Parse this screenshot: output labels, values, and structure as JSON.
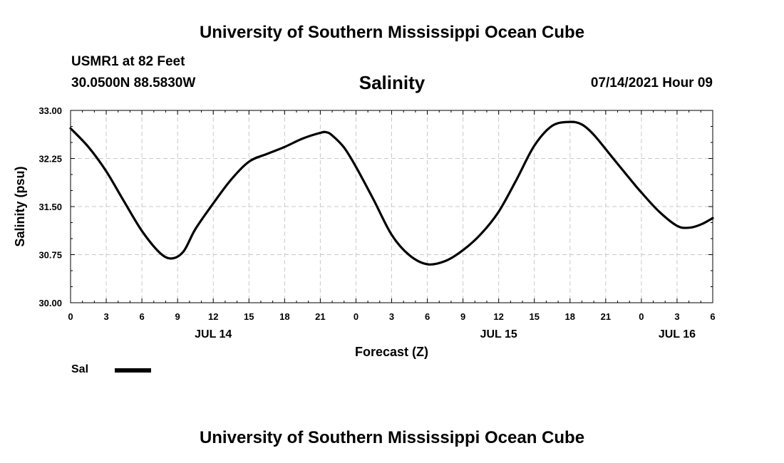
{
  "header": {
    "title_top": "University of Southern Mississippi Ocean Cube",
    "station": "USMR1 at 82 Feet",
    "coords": "30.0500N  88.5830W",
    "variable": "Salinity",
    "datetime": "07/14/2021 Hour 09"
  },
  "footer": {
    "title_bottom": "University of Southern Mississippi Ocean Cube"
  },
  "legend": {
    "label": "Sal",
    "color": "#000000"
  },
  "chart_data": {
    "type": "line",
    "title": "Salinity",
    "xlabel": "Forecast (Z)",
    "ylabel": "Salinity (psu)",
    "xlim": [
      0,
      54
    ],
    "ylim": [
      30.0,
      33.0
    ],
    "grid": true,
    "x_ticks": [
      0,
      3,
      6,
      9,
      12,
      15,
      18,
      21,
      24,
      27,
      30,
      33,
      36,
      39,
      42,
      45,
      48,
      51,
      54
    ],
    "x_tick_labels": [
      "0",
      "3",
      "6",
      "9",
      "12",
      "15",
      "18",
      "21",
      "0",
      "3",
      "6",
      "9",
      "12",
      "15",
      "18",
      "21",
      "0",
      "3",
      "6"
    ],
    "y_ticks": [
      30.0,
      30.75,
      31.5,
      32.25,
      33.0
    ],
    "y_tick_labels": [
      "30.00",
      "30.75",
      "31.50",
      "32.25",
      "33.00"
    ],
    "date_labels": [
      {
        "x": 12,
        "label": "JUL 14"
      },
      {
        "x": 36,
        "label": "JUL 15"
      },
      {
        "x": 51,
        "label": "JUL 16"
      }
    ],
    "series": [
      {
        "name": "Sal",
        "color": "#000000",
        "x": [
          0,
          1.5,
          3,
          4.5,
          6,
          7.5,
          8.5,
          9.5,
          10.5,
          12,
          13.5,
          15,
          16.5,
          18,
          19.5,
          21,
          21.5,
          22,
          23,
          24,
          25.5,
          27,
          28.5,
          30,
          31.5,
          33,
          34.5,
          36,
          37.5,
          39,
          40.5,
          42,
          43,
          44,
          45.5,
          47,
          48,
          49.5,
          51,
          52,
          53,
          54
        ],
        "values": [
          32.72,
          32.43,
          32.05,
          31.58,
          31.12,
          30.78,
          30.69,
          30.8,
          31.15,
          31.55,
          31.92,
          32.2,
          32.32,
          32.43,
          32.56,
          32.65,
          32.66,
          32.61,
          32.42,
          32.12,
          31.6,
          31.06,
          30.74,
          30.6,
          30.65,
          30.82,
          31.07,
          31.42,
          31.92,
          32.45,
          32.76,
          32.82,
          32.78,
          32.62,
          32.28,
          31.94,
          31.72,
          31.42,
          31.2,
          31.17,
          31.22,
          31.32
        ]
      }
    ]
  }
}
